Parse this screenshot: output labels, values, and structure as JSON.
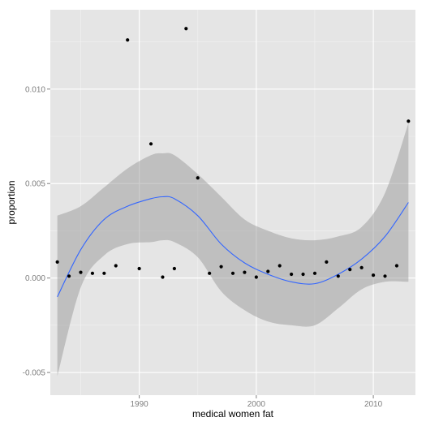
{
  "chart_data": {
    "type": "scatter",
    "title": "",
    "xlabel": "medical women fat",
    "ylabel": "proportion",
    "xlim": [
      1982.4,
      2013.6
    ],
    "ylim": [
      -0.0062,
      0.0142
    ],
    "x_ticks": [
      1990,
      2000,
      2010
    ],
    "x_tick_labels": [
      "1990",
      "2000",
      "2010"
    ],
    "x_minor_ticks": [
      1985,
      1995,
      2005
    ],
    "y_ticks": [
      -0.005,
      0.0,
      0.005,
      0.01
    ],
    "y_tick_labels": [
      "-0.005",
      "0.000",
      "0.005",
      "0.010"
    ],
    "y_minor_ticks": [
      -0.0025,
      0.0025,
      0.0075,
      0.0125
    ],
    "grid": true,
    "legend": "none",
    "colors": {
      "panel_background": "#e5e5e5",
      "grid_major": "#ffffff",
      "grid_minor": "#f2f2f2",
      "points": "#000000",
      "smooth_line": "#3366ff",
      "confidence_band": "#999999",
      "tick_label": "#7f7f7f",
      "tick_mark": "#7f7f7f"
    },
    "points": [
      {
        "x": 1983,
        "y": 0.00085
      },
      {
        "x": 1984,
        "y": 0.0001
      },
      {
        "x": 1985,
        "y": 0.0003
      },
      {
        "x": 1986,
        "y": 0.00025
      },
      {
        "x": 1987,
        "y": 0.00025
      },
      {
        "x": 1988,
        "y": 0.00065
      },
      {
        "x": 1989,
        "y": 0.0126
      },
      {
        "x": 1990,
        "y": 0.0005
      },
      {
        "x": 1991,
        "y": 0.0071
      },
      {
        "x": 1992,
        "y": 5e-05
      },
      {
        "x": 1993,
        "y": 0.0005
      },
      {
        "x": 1994,
        "y": 0.0132
      },
      {
        "x": 1995,
        "y": 0.0053
      },
      {
        "x": 1996,
        "y": 0.00025
      },
      {
        "x": 1997,
        "y": 0.0006
      },
      {
        "x": 1998,
        "y": 0.00025
      },
      {
        "x": 1999,
        "y": 0.0003
      },
      {
        "x": 2000,
        "y": 5e-05
      },
      {
        "x": 2001,
        "y": 0.00035
      },
      {
        "x": 2002,
        "y": 0.00065
      },
      {
        "x": 2003,
        "y": 0.0002
      },
      {
        "x": 2004,
        "y": 0.0002
      },
      {
        "x": 2005,
        "y": 0.00025
      },
      {
        "x": 2006,
        "y": 0.00085
      },
      {
        "x": 2007,
        "y": 0.0001
      },
      {
        "x": 2008,
        "y": 0.00045
      },
      {
        "x": 2009,
        "y": 0.00055
      },
      {
        "x": 2010,
        "y": 0.00015
      },
      {
        "x": 2011,
        "y": 0.0001
      },
      {
        "x": 2012,
        "y": 0.00065
      },
      {
        "x": 2013,
        "y": 0.0083
      }
    ],
    "smooth": {
      "method": "loess",
      "x": [
        1983,
        1985,
        1987,
        1989,
        1991,
        1992,
        1993,
        1995,
        1997,
        1999,
        2001,
        2003,
        2005,
        2007,
        2009,
        2011,
        2013
      ],
      "y": [
        -0.001,
        0.0015,
        0.0031,
        0.0038,
        0.0042,
        0.0043,
        0.0042,
        0.0033,
        0.0018,
        0.0008,
        0.0002,
        -0.0002,
        -0.0003,
        0.0002,
        0.001,
        0.0022,
        0.004
      ],
      "upper": [
        0.0033,
        0.0038,
        0.0048,
        0.0058,
        0.0065,
        0.0066,
        0.0065,
        0.0055,
        0.0043,
        0.0031,
        0.0025,
        0.0021,
        0.002,
        0.0022,
        0.0027,
        0.0045,
        0.0082
      ],
      "lower": [
        -0.0052,
        -0.0005,
        0.0012,
        0.0018,
        0.0019,
        0.002,
        0.0019,
        0.0011,
        -0.0007,
        -0.0017,
        -0.0023,
        -0.0025,
        -0.0025,
        -0.0016,
        -0.0006,
        -0.0002,
        -0.0002
      ]
    }
  }
}
